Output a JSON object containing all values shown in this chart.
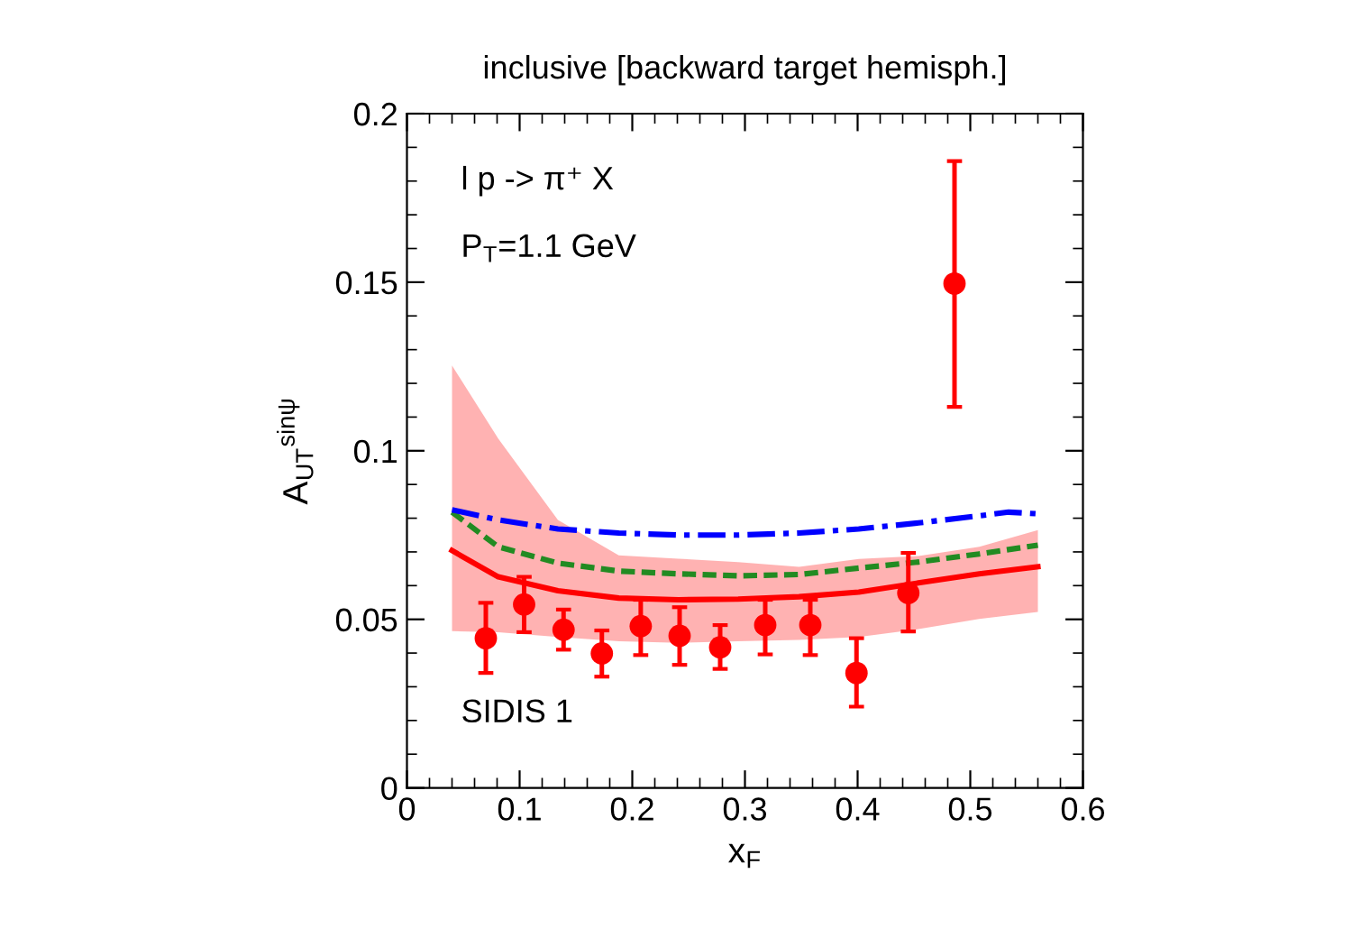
{
  "chart_data": {
    "type": "scatter",
    "title": "inclusive [backward target hemisph.]",
    "xlabel": "x$_{F}$",
    "ylabel": "A$_{UT}$$^{sinψ}$",
    "xlim": [
      0,
      0.6
    ],
    "ylim": [
      0,
      0.2
    ],
    "xticks": [
      0,
      0.1,
      0.2,
      0.3,
      0.4,
      0.5,
      0.6
    ],
    "yticks": [
      0,
      0.05,
      0.1,
      0.15,
      0.2
    ],
    "grid": false,
    "annotations": [
      "l p -> π⁺ X",
      "P$_{T}$=1.1 GeV",
      "SIDIS 1"
    ],
    "series": [
      {
        "type": "line",
        "color": "#ff0000",
        "line_style": "solid",
        "x": [
          0.04,
          0.081,
          0.134,
          0.188,
          0.241,
          0.294,
          0.348,
          0.401,
          0.454,
          0.508,
          0.56
        ],
        "values": [
          0.0704,
          0.0626,
          0.0585,
          0.0563,
          0.0558,
          0.056,
          0.0567,
          0.0581,
          0.0608,
          0.0635,
          0.0656
        ],
        "lower": [
          0.0465,
          0.0462,
          0.0448,
          0.0435,
          0.043,
          0.0435,
          0.0439,
          0.0448,
          0.0471,
          0.0501,
          0.0522
        ],
        "upper": [
          0.1253,
          0.1036,
          0.0795,
          0.069,
          0.068,
          0.067,
          0.0656,
          0.0679,
          0.0688,
          0.0715,
          0.0765
        ]
      },
      {
        "type": "line",
        "color": "#228b22",
        "line_style": "dashed",
        "x": [
          0.04,
          0.081,
          0.134,
          0.188,
          0.241,
          0.294,
          0.348,
          0.401,
          0.454,
          0.508,
          0.56
        ],
        "values": [
          0.0818,
          0.0715,
          0.0667,
          0.0643,
          0.0635,
          0.0629,
          0.0633,
          0.0652,
          0.067,
          0.0694,
          0.072
        ]
      },
      {
        "type": "line",
        "color": "#0000ff",
        "line_style": "dashdot",
        "x": [
          0.04,
          0.081,
          0.134,
          0.188,
          0.241,
          0.294,
          0.348,
          0.401,
          0.454,
          0.508,
          0.534,
          0.56
        ],
        "values": [
          0.0825,
          0.0795,
          0.0768,
          0.0756,
          0.075,
          0.075,
          0.0756,
          0.0768,
          0.0786,
          0.0807,
          0.0818,
          0.0813
        ]
      },
      {
        "color": "#ff0000",
        "marker": "circle",
        "x": [
          0.07,
          0.104,
          0.139,
          0.173,
          0.2075,
          0.242,
          0.278,
          0.318,
          0.358,
          0.399,
          0.445,
          0.486
        ],
        "values": [
          0.0444,
          0.0544,
          0.0469,
          0.0399,
          0.048,
          0.0451,
          0.0417,
          0.0483,
          0.0483,
          0.0341,
          0.0578,
          0.1496
        ],
        "errors": [
          [
            0.0341,
            0.0549
          ],
          [
            0.0462,
            0.0626
          ],
          [
            0.041,
            0.0529
          ],
          [
            0.033,
            0.0467
          ],
          [
            0.0394,
            0.0558
          ],
          [
            0.0365,
            0.0536
          ],
          [
            0.0353,
            0.0483
          ],
          [
            0.0396,
            0.0558
          ],
          [
            0.0394,
            0.0558
          ],
          [
            0.0241,
            0.0444
          ],
          [
            0.0464,
            0.0697
          ],
          [
            0.113,
            0.1859
          ]
        ]
      }
    ]
  }
}
